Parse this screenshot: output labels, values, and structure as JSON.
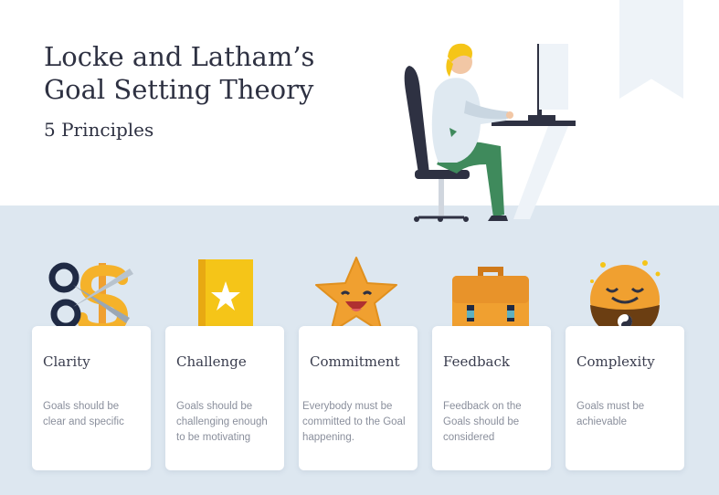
{
  "header": {
    "title_line1": "Locke and Latham’s",
    "title_line2": "Goal Setting Theory",
    "subtitle": "5 Principles"
  },
  "colors": {
    "title": "#2e3142",
    "band": "#dde7f0",
    "card": "#ffffff",
    "desc": "#8a8f9c",
    "accent_orange": "#f0a030",
    "accent_yellow": "#f5c518",
    "accent_navy": "#1f2a44"
  },
  "principles": [
    {
      "title": "Clarity",
      "description": "Goals should be clear and specific",
      "icon": "scissors-dollar-icon"
    },
    {
      "title": "Challenge",
      "description": "Goals should be challenging enough to be motivating",
      "icon": "star-document-icon"
    },
    {
      "title": "Commitment",
      "description": "Everybody must be committed to the Goal happening.",
      "icon": "smiling-star-icon"
    },
    {
      "title": "Feedback",
      "description": "Feedback on the Goals should be considered",
      "icon": "briefcase-icon"
    },
    {
      "title": "Complexity",
      "description": "Goals must be achievable",
      "icon": "yin-yang-face-icon"
    }
  ],
  "illustration": "person-at-desk-illustration"
}
